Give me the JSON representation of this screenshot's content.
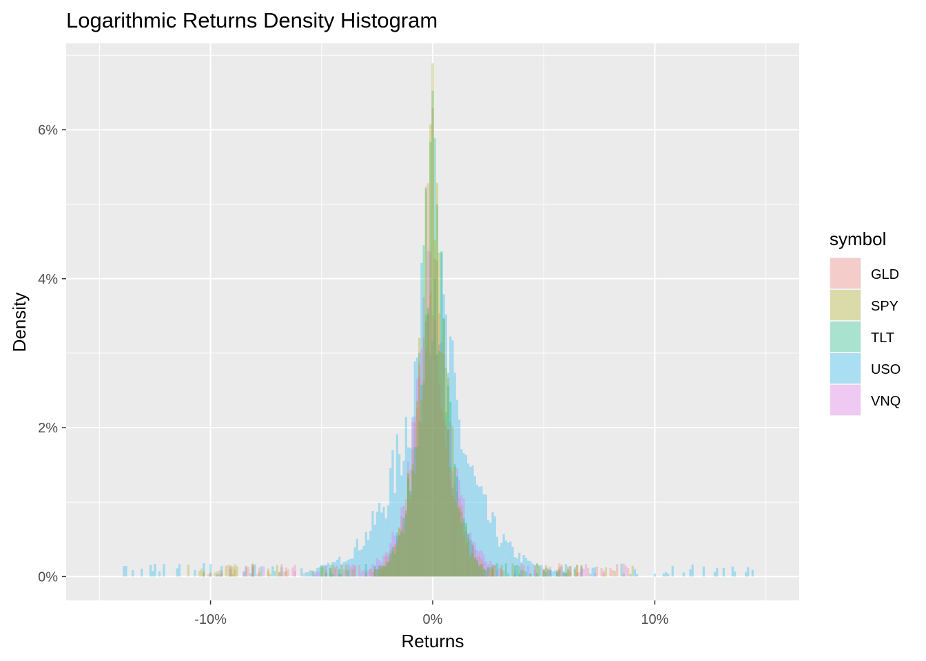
{
  "chart_data": {
    "type": "histogram",
    "title": "Logarithmic Returns Density Histogram",
    "xlabel": "Returns",
    "ylabel": "Density",
    "xlim": [
      -0.15,
      0.15
    ],
    "ylim": [
      0,
      0.07
    ],
    "x_ticks": [
      {
        "value": -0.1,
        "label": "-10%"
      },
      {
        "value": 0.0,
        "label": "0%"
      },
      {
        "value": 0.1,
        "label": "10%"
      }
    ],
    "y_ticks": [
      {
        "value": 0.0,
        "label": "0%"
      },
      {
        "value": 0.02,
        "label": "2%"
      },
      {
        "value": 0.04,
        "label": "4%"
      },
      {
        "value": 0.06,
        "label": "6%"
      }
    ],
    "grid": true,
    "bin_width": 0.001,
    "legend": {
      "title": "symbol",
      "position": "right"
    },
    "series": [
      {
        "name": "GLD",
        "color": "#F8766D",
        "peak_x": 0.0,
        "peak_density": 0.055,
        "spread": 0.0085,
        "tail_min": -0.105,
        "tail_max": 0.09
      },
      {
        "name": "SPY",
        "color": "#A3A500",
        "peak_x": 0.0,
        "peak_density": 0.069,
        "spread": 0.0075,
        "tail_min": -0.11,
        "tail_max": 0.09
      },
      {
        "name": "TLT",
        "color": "#00BF7D",
        "peak_x": 0.0,
        "peak_density": 0.063,
        "spread": 0.008,
        "tail_min": -0.06,
        "tail_max": 0.06
      },
      {
        "name": "USO",
        "color": "#00B0F6",
        "peak_x": 0.0,
        "peak_density": 0.045,
        "spread": 0.018,
        "tail_min": -0.14,
        "tail_max": 0.144
      },
      {
        "name": "VNQ",
        "color": "#E76BF3",
        "peak_x": 0.0,
        "peak_density": 0.05,
        "spread": 0.01,
        "tail_min": -0.1,
        "tail_max": 0.09
      }
    ]
  }
}
